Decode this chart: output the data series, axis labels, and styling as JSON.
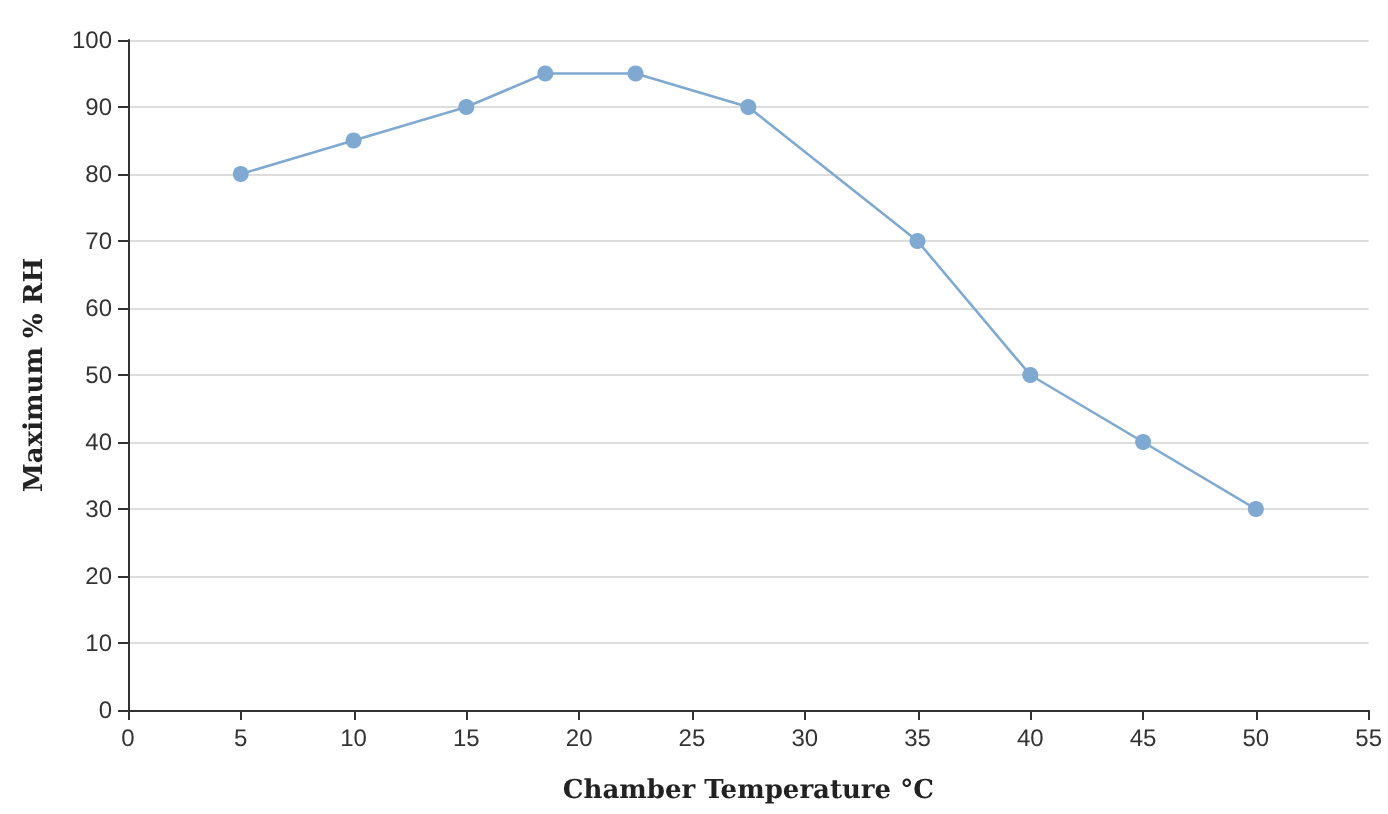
{
  "chart_data": {
    "type": "line",
    "xlabel": "Chamber Temperature °C",
    "ylabel": "Maximum % RH",
    "x": [
      5,
      10,
      15,
      18.5,
      22.5,
      27.5,
      35,
      40,
      45,
      50
    ],
    "series": [
      {
        "color": "#7fa9d0",
        "values": [
          80,
          85,
          90,
          95,
          95,
          90,
          70,
          50,
          40,
          30
        ]
      }
    ],
    "xlim": [
      0,
      55
    ],
    "xticks": [
      0,
      5,
      10,
      15,
      20,
      25,
      30,
      35,
      40,
      45,
      50,
      55
    ],
    "ylim": [
      0,
      100
    ],
    "yticks": [
      0,
      10,
      20,
      30,
      40,
      50,
      60,
      70,
      80,
      90,
      100
    ],
    "grid": "y",
    "marker": "circle",
    "line_style": "solid"
  }
}
